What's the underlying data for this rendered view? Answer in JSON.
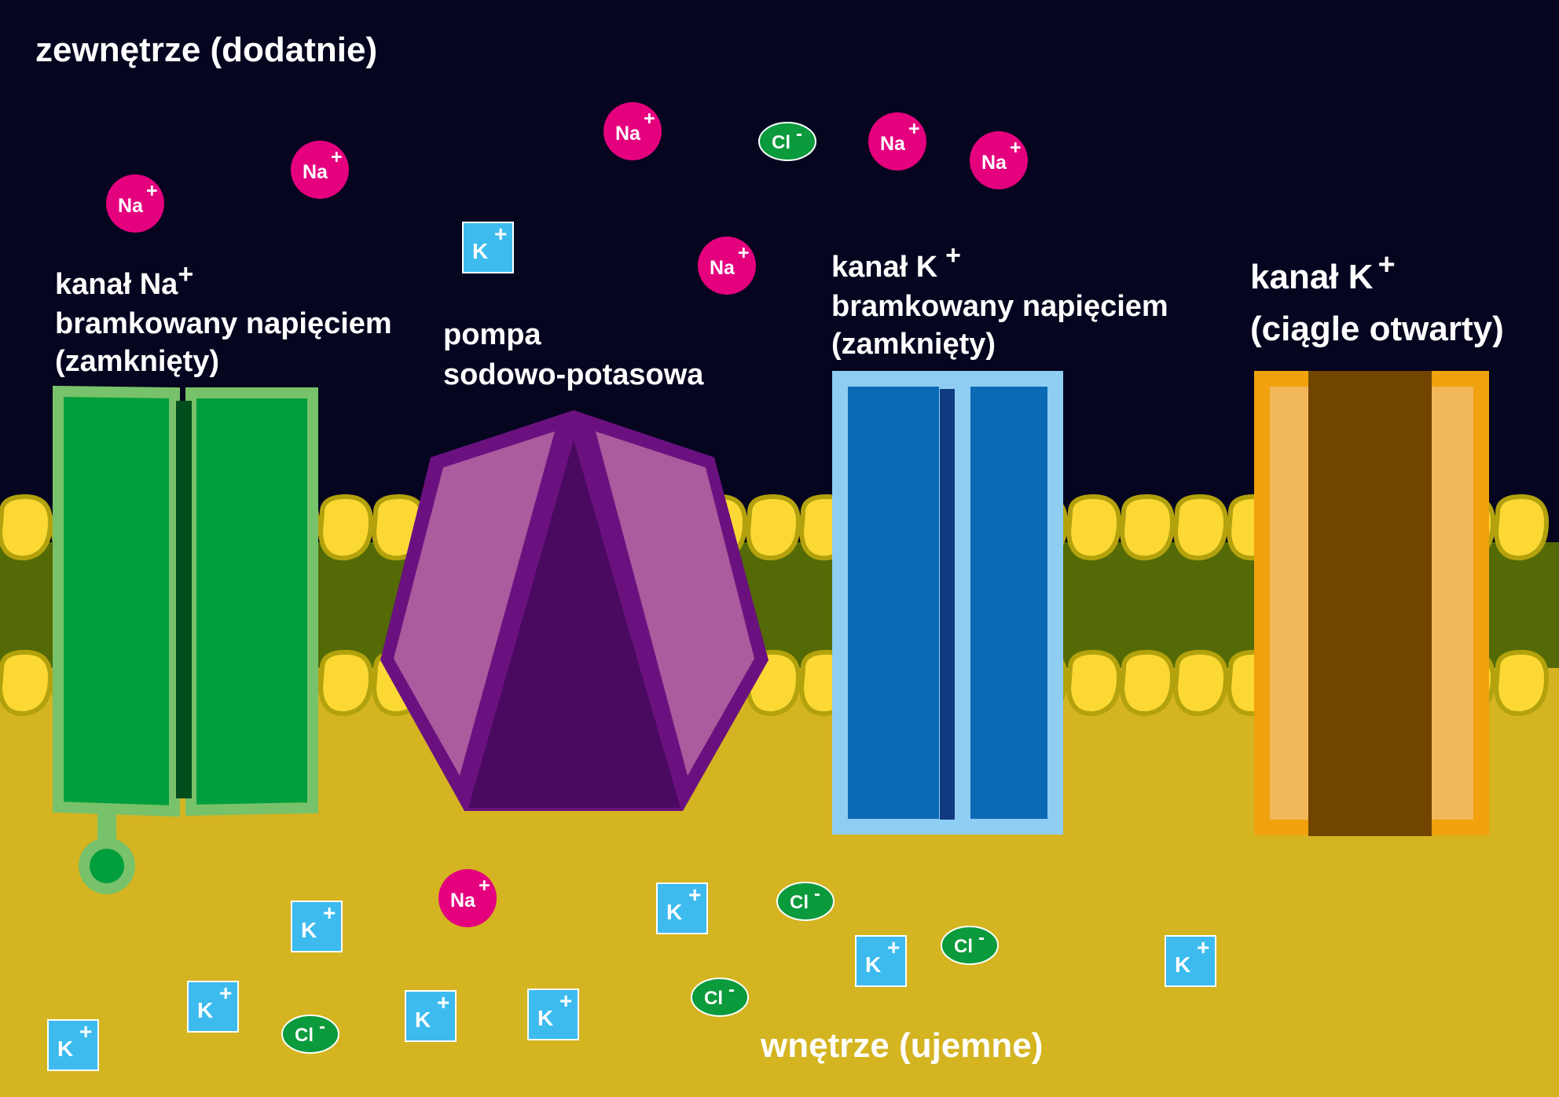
{
  "labels": {
    "outside": "zewnętrze (dodatnie)",
    "inside": "wnętrze (ujemne)",
    "na_channel": {
      "line1": "kanał Na",
      "sup": "+",
      "line2": "bramkowany napięciem",
      "line3": "(zamknięty)"
    },
    "pump": {
      "line1": "pompa",
      "line2": "sodowo-potasowa"
    },
    "k_gated_channel": {
      "line1": "kanał K",
      "sup": "+",
      "line2": "bramkowany napięciem",
      "line3": "(zamknięty)"
    },
    "k_leak_channel": {
      "line1": "kanał K",
      "sup": "+",
      "line2": "(ciągle otwarty)"
    }
  },
  "ions": {
    "sodium": {
      "symbol": "Na",
      "charge": "+"
    },
    "potassium": {
      "symbol": "K",
      "charge": "+"
    },
    "chloride": {
      "symbol": "Cl",
      "charge": "-"
    }
  },
  "colors": {
    "outside": "#05051f",
    "inside": "#d4b421",
    "membrane_core": "#536a06",
    "lipid_head": "#fcd835",
    "lipid_outline": "#b3a20d",
    "sodium": "#e5007e",
    "potassium": "#3dbbef",
    "chloride": "#0b9a3c",
    "na_channel": "#009e3c",
    "na_channel_border": "#77c26a",
    "pump_dark": "#4a0a5f",
    "pump_border": "#6b117f",
    "pump_light": "#aa5c9e",
    "k_gated_channel": "#0b6ab4",
    "k_gated_border": "#8fcdf3",
    "k_leak_channel": "#714500",
    "k_leak_inner": "#f2b75a",
    "k_leak_border": "#f0a10d"
  }
}
